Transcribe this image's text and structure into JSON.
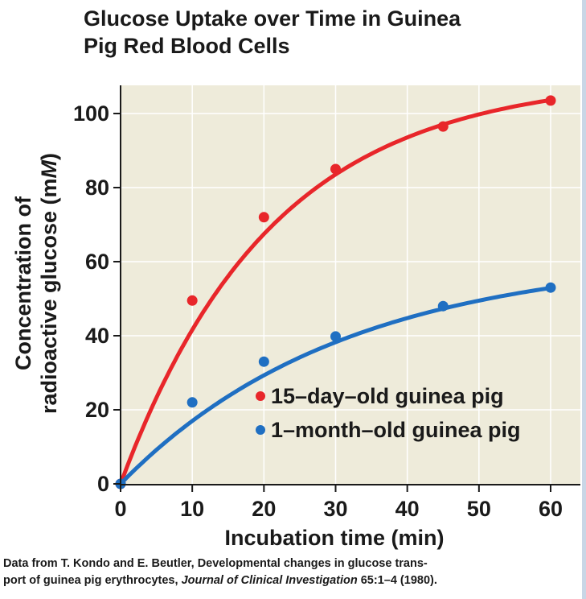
{
  "chart_data": {
    "type": "line",
    "title_lines": [
      "Glucose Uptake over Time in Guinea",
      "Pig Red Blood Cells"
    ],
    "xlabel": "Incubation time (min)",
    "ylabel_lines": [
      "Concentration of",
      "radioactive glucose (mM)"
    ],
    "ylabel_parts": {
      "line2_prefix": "radioactive glucose (m",
      "line2_italic": "M",
      "line2_suffix": ")"
    },
    "xlim": [
      0,
      63
    ],
    "ylim": [
      0,
      110
    ],
    "x_ticks": [
      0,
      10,
      20,
      30,
      40,
      50,
      60
    ],
    "y_ticks": [
      0,
      20,
      40,
      60,
      80,
      100
    ],
    "grid": true,
    "legend_position": "lower-right",
    "series": [
      {
        "name": "15–day–old guinea pig",
        "color": "#e8262a",
        "x": [
          0,
          10,
          20,
          30,
          45,
          60
        ],
        "values": [
          0,
          49.5,
          72,
          85,
          96.5,
          103.5
        ]
      },
      {
        "name": "1–month–old guinea pig",
        "color": "#1f6fc2",
        "x": [
          0,
          10,
          20,
          30,
          45,
          60
        ],
        "values": [
          0,
          22,
          33,
          39.8,
          48,
          53
        ]
      }
    ]
  },
  "plot_background": "#eeebda",
  "source": {
    "line1": "Data from T. Kondo and E. Beutler, Developmental changes in glucose trans-",
    "line2_prefix": "port of guinea pig erythrocytes, ",
    "line2_journal": "Journal of Clinical Investigation",
    "line2_suffix": " 65:1–4 (1980)."
  }
}
